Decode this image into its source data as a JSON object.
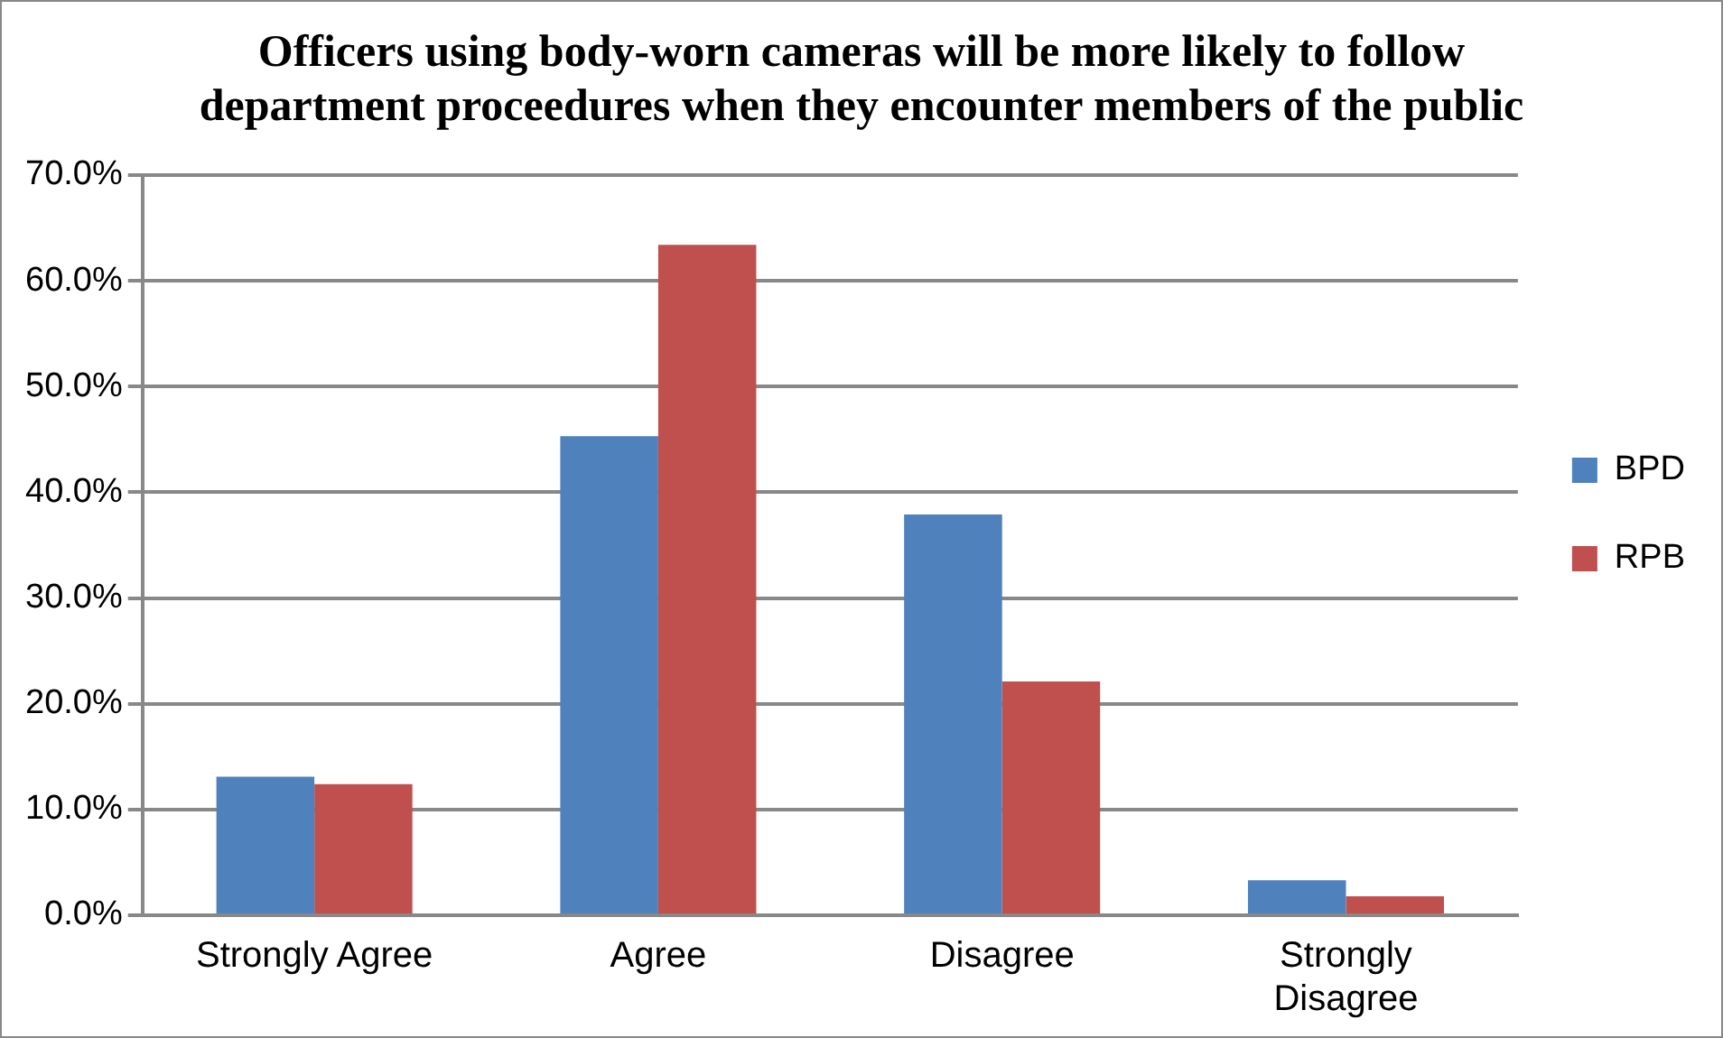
{
  "chart_data": {
    "type": "bar",
    "title": "Officers using body-worn cameras will be more likely to follow department proceedures when they encounter members of the public",
    "categories": [
      "Strongly Agree",
      "Agree",
      "Disagree",
      "Strongly Disagree"
    ],
    "series": [
      {
        "name": "BPD",
        "color": "#4f81bd",
        "values": [
          13.1,
          45.3,
          37.9,
          3.3
        ]
      },
      {
        "name": "RPB",
        "color": "#c0504d",
        "values": [
          12.4,
          63.4,
          22.1,
          1.8
        ]
      }
    ],
    "ylim": [
      0,
      70
    ],
    "yticks": [
      {
        "value": 0,
        "label": "0.0%"
      },
      {
        "value": 10,
        "label": "10.0%"
      },
      {
        "value": 20,
        "label": "20.0%"
      },
      {
        "value": 30,
        "label": "30.0%"
      },
      {
        "value": 40,
        "label": "40.0%"
      },
      {
        "value": 50,
        "label": "50.0%"
      },
      {
        "value": 60,
        "label": "60.0%"
      },
      {
        "value": 70,
        "label": "70.0%"
      }
    ],
    "grid": "y",
    "legend": "right"
  }
}
